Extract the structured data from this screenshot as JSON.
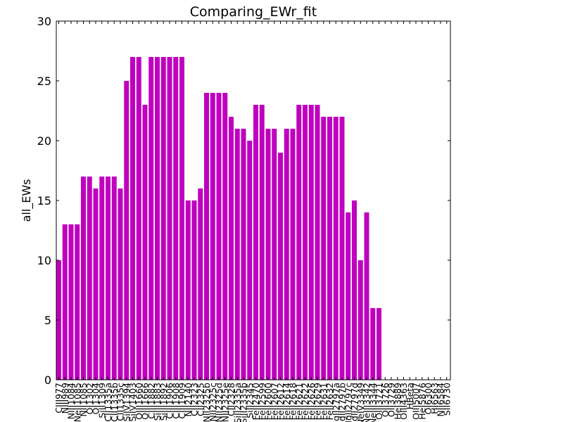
{
  "chart_data": {
    "type": "bar",
    "title": "Comparing_EWr_fit",
    "xlabel": "",
    "ylabel": "all_EWs",
    "ylim": [
      0,
      30
    ],
    "yticks": [
      0,
      5,
      10,
      15,
      20,
      25,
      30
    ],
    "grid": false,
    "bar_color": "#bf00bf",
    "categories": [
      "CIII977",
      "NIII989",
      "NIII1084",
      "NeII1085",
      "NII1085",
      "OI1302",
      "OI1304",
      "SiII1309",
      "CII1335a",
      "CII1335b",
      "CII1335c",
      "SiIV1394",
      "SiIV1403",
      "OIII1660",
      "OIII1666",
      "CIII1882",
      "SiIII1883",
      "SiIII1892",
      "CIII1906",
      "CIII1908",
      "CIII1909",
      "NII2140",
      "CII2323",
      "CII2325",
      "NII2325b",
      "NII2325c",
      "NII2325d",
      "NII2325e",
      "CII2328",
      "SiII2335a",
      "SiII2335b",
      "SiII2345",
      "FeII2470",
      "FeII2599",
      "FeII2600",
      "FeII2607",
      "FeII2612",
      "FeII2614",
      "FeII2618",
      "FeII2621",
      "FeII2622",
      "FeII2626",
      "FeII2629",
      "FeII2631",
      "FeII2632",
      "MgII2797a",
      "MgII2797b",
      "MgII2797c",
      "MgII2797d",
      "NeIV3349",
      "NeIII3342",
      "NeIII3344",
      "OIII3721",
      "OII3726",
      "OII3729",
      "HeI3889",
      "OIII4363",
      "HBeta",
      "OIII5007",
      "HeI5876",
      "OI6300",
      "HI6563",
      "NII6584",
      "SII6730"
    ],
    "values": [
      10,
      13,
      13,
      13,
      17,
      17,
      16,
      17,
      17,
      17,
      16,
      25,
      27,
      27,
      23,
      27,
      27,
      27,
      27,
      27,
      27,
      15,
      15,
      16,
      24,
      24,
      24,
      24,
      22,
      21,
      21,
      20,
      23,
      23,
      21,
      21,
      19,
      21,
      21,
      23,
      23,
      23,
      23,
      22,
      22,
      22,
      22,
      14,
      15,
      10,
      14,
      6,
      6,
      0,
      0,
      0,
      0,
      0,
      0,
      0,
      0,
      0,
      0,
      0
    ]
  }
}
